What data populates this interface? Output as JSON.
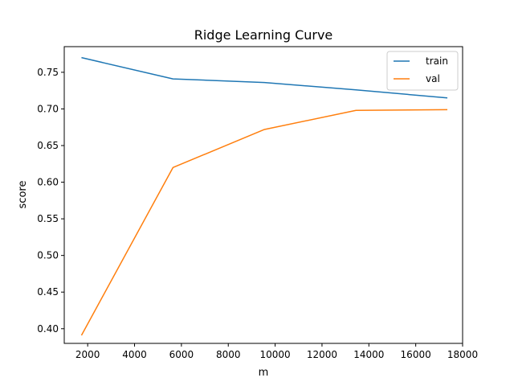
{
  "chart_data": {
    "type": "line",
    "title": "Ridge Learning Curve",
    "xlabel": "m",
    "ylabel": "score",
    "xlim": [
      1000,
      18000
    ],
    "ylim": [
      0.38,
      0.785
    ],
    "x_ticks": [
      2000,
      4000,
      6000,
      8000,
      10000,
      12000,
      14000,
      16000,
      18000
    ],
    "x_tick_labels": [
      "2000",
      "4000",
      "6000",
      "8000",
      "10000",
      "12000",
      "14000",
      "16000",
      "18000"
    ],
    "y_ticks": [
      0.4,
      0.45,
      0.5,
      0.55,
      0.6,
      0.65,
      0.7,
      0.75
    ],
    "y_tick_labels": [
      "0.40",
      "0.45",
      "0.50",
      "0.55",
      "0.60",
      "0.65",
      "0.70",
      "0.75"
    ],
    "grid": false,
    "legend_position": "top-right",
    "x": [
      1735,
      5640,
      9545,
      13450,
      17350
    ],
    "series": [
      {
        "name": "train",
        "color": "#1f77b4",
        "values": [
          0.77,
          0.741,
          0.736,
          0.726,
          0.715
        ]
      },
      {
        "name": "val",
        "color": "#ff7f0e",
        "values": [
          0.391,
          0.62,
          0.672,
          0.698,
          0.699
        ]
      }
    ]
  }
}
